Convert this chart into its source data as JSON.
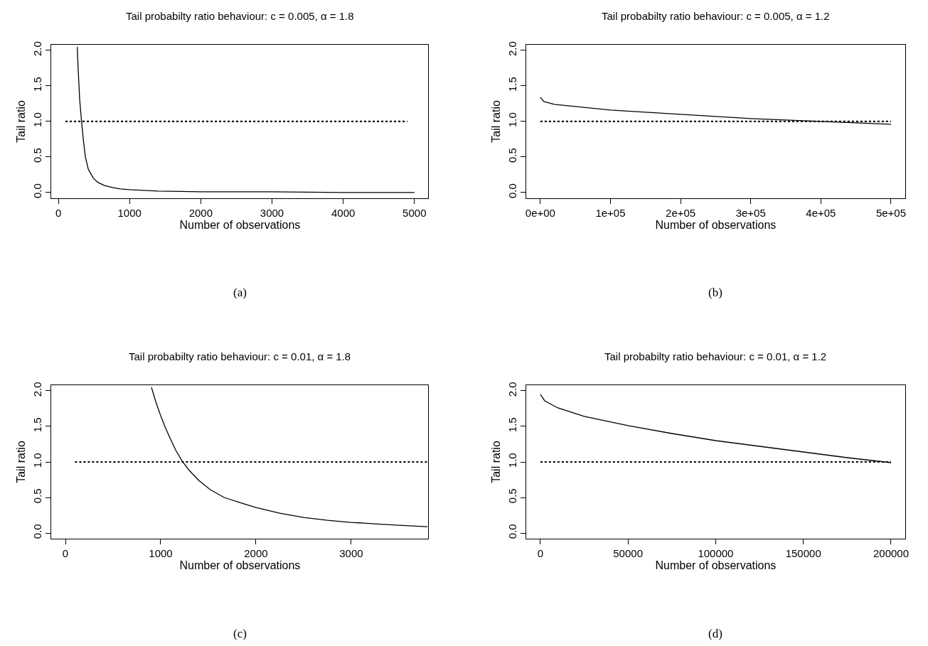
{
  "chart_data": [
    {
      "type": "line",
      "title": "Tail probabilty ratio behaviour: c = 0.005, α = 1.8",
      "xlabel": "Number of observations",
      "ylabel": "Tail ratio",
      "annotations": [
        "(a)"
      ],
      "xlim": [
        -96,
        5196
      ],
      "ylim": [
        -0.08,
        2.08
      ],
      "xticks": [
        0,
        1000,
        2000,
        3000,
        4000,
        5000
      ],
      "yticks": [
        {
          "value": 0,
          "label": "0.0"
        },
        {
          "value": 0.5,
          "label": "0.5"
        },
        {
          "value": 1,
          "label": "1.0"
        },
        {
          "value": 1.5,
          "label": "1.5"
        },
        {
          "value": 2,
          "label": "2.0"
        }
      ],
      "series": [
        {
          "color": "#000000",
          "line_style": "solid",
          "x": [
            265,
            280,
            300,
            326,
            350,
            379,
            420,
            492,
            560,
            644,
            760,
            871,
            1000,
            1400,
            2000,
            3000,
            4000,
            5000
          ],
          "values": [
            2.05,
            1.7,
            1.3,
            1.0,
            0.75,
            0.5,
            0.33,
            0.2,
            0.14,
            0.1,
            0.07,
            0.05,
            0.04,
            0.02,
            0.01,
            0.01,
            0.0,
            0.0
          ]
        },
        {
          "color": "#000000",
          "line_style": "dotted",
          "x": [
            100,
            4900
          ],
          "values": [
            1,
            1
          ]
        }
      ]
    },
    {
      "type": "line",
      "title": "Tail probabilty ratio behaviour: c = 0.005, α = 1.2",
      "xlabel": "Number of observations",
      "ylabel": "Tail ratio",
      "annotations": [
        "(b)"
      ],
      "xlim": [
        -20000,
        520000
      ],
      "ylim": [
        -0.08,
        2.08
      ],
      "xticks": [
        {
          "value": 0,
          "label": "0e+00"
        },
        {
          "value": 100000,
          "label": "1e+05"
        },
        {
          "value": 200000,
          "label": "2e+05"
        },
        {
          "value": 300000,
          "label": "3e+05"
        },
        {
          "value": 400000,
          "label": "4e+05"
        },
        {
          "value": 500000,
          "label": "5e+05"
        }
      ],
      "yticks": [
        {
          "value": 0,
          "label": "0.0"
        },
        {
          "value": 0.5,
          "label": "0.5"
        },
        {
          "value": 1,
          "label": "1.0"
        },
        {
          "value": 1.5,
          "label": "1.5"
        },
        {
          "value": 2,
          "label": "2.0"
        }
      ],
      "series": [
        {
          "color": "#000000",
          "line_style": "solid",
          "x": [
            0,
            5000,
            20000,
            50000,
            100000,
            150000,
            200000,
            250000,
            300000,
            350000,
            400000,
            450000,
            500000
          ],
          "values": [
            1.34,
            1.28,
            1.24,
            1.21,
            1.16,
            1.13,
            1.1,
            1.07,
            1.04,
            1.02,
            1.0,
            0.98,
            0.96
          ]
        },
        {
          "color": "#000000",
          "line_style": "dotted",
          "x": [
            0,
            500000
          ],
          "values": [
            1,
            1
          ]
        }
      ]
    },
    {
      "type": "line",
      "title": "Tail probabilty ratio behaviour: c = 0.01, α = 1.8",
      "xlabel": "Number of observations",
      "ylabel": "Tail ratio",
      "annotations": [
        "(c)"
      ],
      "xlim": [
        -146,
        3810
      ],
      "ylim": [
        -0.08,
        2.08
      ],
      "xticks": [
        0,
        1000,
        2000,
        3000
      ],
      "yticks": [
        {
          "value": 0,
          "label": "0.0"
        },
        {
          "value": 0.5,
          "label": "0.5"
        },
        {
          "value": 1,
          "label": "1.0"
        },
        {
          "value": 1.5,
          "label": "1.5"
        },
        {
          "value": 2,
          "label": "2.0"
        }
      ],
      "series": [
        {
          "color": "#000000",
          "line_style": "solid",
          "x": [
            903,
            950,
            1000,
            1050,
            1100,
            1160,
            1231,
            1300,
            1400,
            1520,
            1666,
            1830,
            2000,
            2250,
            2500,
            2750,
            3000,
            3250,
            3500,
            3800
          ],
          "values": [
            2.05,
            1.84,
            1.65,
            1.48,
            1.33,
            1.16,
            1.0,
            0.88,
            0.74,
            0.61,
            0.5,
            0.43,
            0.36,
            0.28,
            0.22,
            0.18,
            0.15,
            0.13,
            0.11,
            0.09
          ]
        },
        {
          "color": "#000000",
          "line_style": "dotted",
          "x": [
            100,
            3800
          ],
          "values": [
            1,
            1
          ]
        }
      ]
    },
    {
      "type": "line",
      "title": "Tail probabilty ratio behaviour: c = 0.01, α = 1.2",
      "xlabel": "Number of observations",
      "ylabel": "Tail ratio",
      "annotations": [
        "(d)"
      ],
      "xlim": [
        -8000,
        208000
      ],
      "ylim": [
        -0.08,
        2.08
      ],
      "xticks": [
        0,
        50000,
        100000,
        150000,
        200000
      ],
      "yticks": [
        {
          "value": 0,
          "label": "0.0"
        },
        {
          "value": 0.5,
          "label": "0.5"
        },
        {
          "value": 1,
          "label": "1.0"
        },
        {
          "value": 1.5,
          "label": "1.5"
        },
        {
          "value": 2,
          "label": "2.0"
        }
      ],
      "series": [
        {
          "color": "#000000",
          "line_style": "solid",
          "x": [
            0,
            2500,
            10000,
            25000,
            50000,
            75000,
            100000,
            125000,
            150000,
            175000,
            200000
          ],
          "values": [
            1.95,
            1.86,
            1.76,
            1.64,
            1.51,
            1.4,
            1.3,
            1.22,
            1.14,
            1.06,
            0.99
          ]
        },
        {
          "color": "#000000",
          "line_style": "dotted",
          "x": [
            0,
            200000
          ],
          "values": [
            1,
            1
          ]
        }
      ]
    }
  ]
}
